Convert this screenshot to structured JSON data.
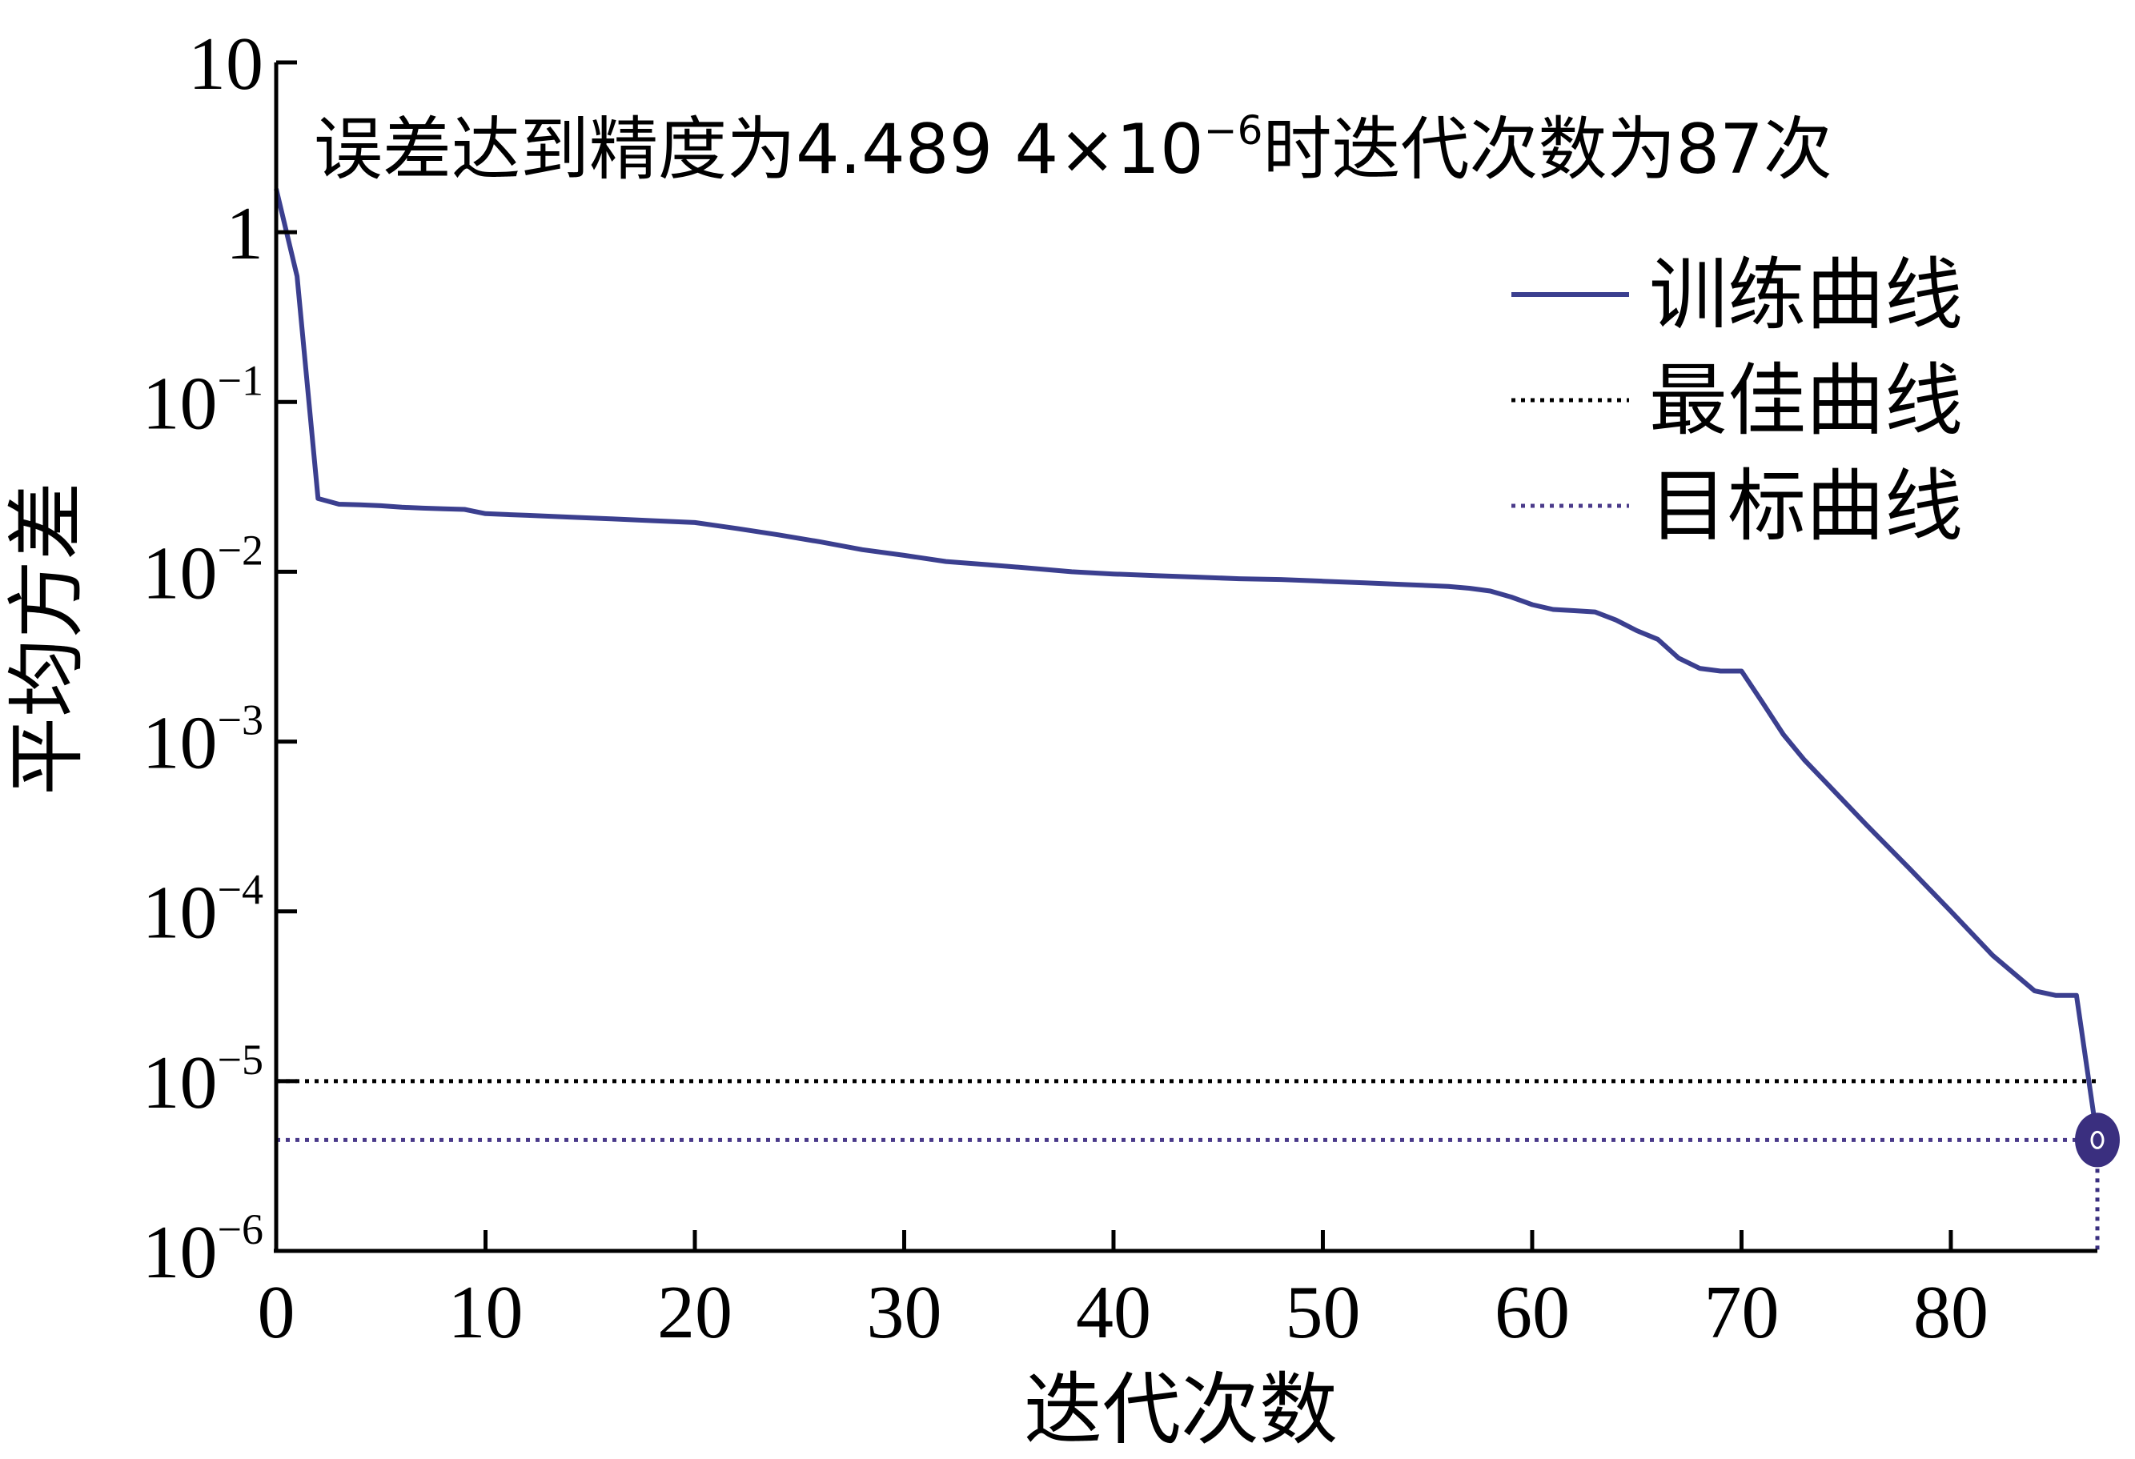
{
  "chart_data": {
    "type": "line",
    "title_parts": {
      "prefix": "误差达到精度为4.489 4×10",
      "exponent": "−6",
      "suffix": "时迭代次数为87次"
    },
    "xlabel": "迭代次数",
    "ylabel": "平均方差",
    "x_scale": "linear",
    "y_scale": "log",
    "xlim": [
      0,
      87
    ],
    "ylim": [
      1e-06,
      10
    ],
    "x_ticks": [
      "0",
      "10",
      "20",
      "30",
      "40",
      "50",
      "60",
      "70",
      "80"
    ],
    "y_ticks": [
      {
        "base": "10",
        "exp": ""
      },
      {
        "base": "1",
        "exp": ""
      },
      {
        "base": "10",
        "exp": "−1"
      },
      {
        "base": "10",
        "exp": "−2"
      },
      {
        "base": "10",
        "exp": "−3"
      },
      {
        "base": "10",
        "exp": "−4"
      },
      {
        "base": "10",
        "exp": "−5"
      },
      {
        "base": "10",
        "exp": "−6"
      }
    ],
    "grid": false,
    "legend_position": "top-right",
    "series": [
      {
        "name": "训练曲线",
        "style": "solid",
        "color": "#3b3f8f",
        "x": [
          0,
          1,
          2,
          3,
          4,
          5,
          6,
          7,
          8,
          9,
          10,
          12,
          14,
          16,
          18,
          20,
          22,
          24,
          26,
          28,
          30,
          32,
          34,
          36,
          38,
          40,
          42,
          44,
          46,
          48,
          50,
          52,
          54,
          56,
          57,
          58,
          59,
          60,
          61,
          62,
          63,
          64,
          65,
          66,
          67,
          68,
          69,
          70,
          71,
          72,
          73,
          74,
          76,
          78,
          80,
          82,
          84,
          85,
          86,
          87
        ],
        "y": [
          1.8,
          0.55,
          0.027,
          0.025,
          0.0248,
          0.0245,
          0.024,
          0.0237,
          0.0235,
          0.0233,
          0.022,
          0.0215,
          0.021,
          0.0205,
          0.02,
          0.0195,
          0.018,
          0.0165,
          0.015,
          0.0135,
          0.0125,
          0.0115,
          0.011,
          0.0105,
          0.01,
          0.0097,
          0.0095,
          0.0093,
          0.0091,
          0.009,
          0.0088,
          0.0086,
          0.0084,
          0.0082,
          0.008,
          0.0077,
          0.0071,
          0.0064,
          0.006,
          0.0059,
          0.0058,
          0.0052,
          0.0045,
          0.004,
          0.0031,
          0.0027,
          0.0026,
          0.0026,
          0.0017,
          0.0011,
          0.00078,
          0.00058,
          0.00032,
          0.00018,
          0.0001,
          5.5e-05,
          3.4e-05,
          3.2e-05,
          3.2e-05,
          4.5e-06
        ]
      },
      {
        "name": "最佳曲线",
        "style": "dotted",
        "color": "#000000",
        "x": [
          0,
          87
        ],
        "y": [
          1e-05,
          1e-05
        ]
      },
      {
        "name": "目标曲线",
        "style": "dotted",
        "color": "#4a3a8a",
        "x": [
          0,
          87
        ],
        "y": [
          4.5e-06,
          4.5e-06
        ]
      }
    ],
    "marker": {
      "x": 87,
      "y": 4.5e-06,
      "color": "#3a2f7f"
    }
  }
}
